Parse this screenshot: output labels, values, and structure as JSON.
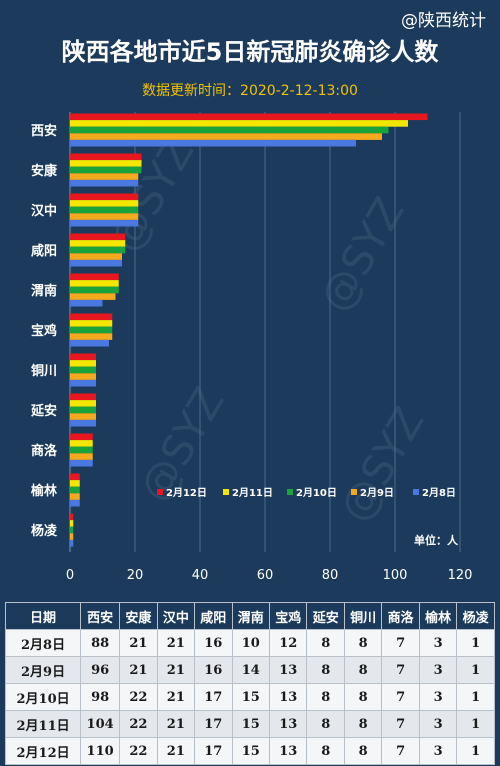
{
  "header": {
    "watermark": "@陕西统计",
    "title": "陕西各地市近5日新冠肺炎确诊人数",
    "subtitle": "数据更新时间：2020-2-12-13:00"
  },
  "chart_data": {
    "type": "bar",
    "orientation": "horizontal",
    "categories": [
      "西安",
      "安康",
      "汉中",
      "咸阳",
      "渭南",
      "宝鸡",
      "铜川",
      "延安",
      "商洛",
      "榆林",
      "杨凌"
    ],
    "series": [
      {
        "name": "2月12日",
        "color": "#e8161d",
        "values": [
          110,
          22,
          21,
          17,
          15,
          13,
          8,
          8,
          7,
          3,
          1
        ]
      },
      {
        "name": "2月11日",
        "color": "#f3e600",
        "values": [
          104,
          22,
          21,
          17,
          15,
          13,
          8,
          8,
          7,
          3,
          1
        ]
      },
      {
        "name": "2月10日",
        "color": "#1aa33a",
        "values": [
          98,
          22,
          21,
          17,
          15,
          13,
          8,
          8,
          7,
          3,
          1
        ]
      },
      {
        "name": "2月9日",
        "color": "#f5a91c",
        "values": [
          96,
          21,
          21,
          16,
          14,
          13,
          8,
          8,
          7,
          3,
          1
        ]
      },
      {
        "name": "2月8日",
        "color": "#4a78e0",
        "values": [
          88,
          21,
          21,
          16,
          10,
          12,
          8,
          8,
          7,
          3,
          1
        ]
      }
    ],
    "x_ticks": [
      0,
      20,
      40,
      60,
      80,
      100,
      120
    ],
    "xlim": [
      0,
      120
    ],
    "unit_label": "单位：人",
    "legend_position": "lower-right",
    "grid": true
  },
  "table": {
    "headers": [
      "日期",
      "西安",
      "安康",
      "汉中",
      "咸阳",
      "渭南",
      "宝鸡",
      "延安",
      "铜川",
      "商洛",
      "榆林",
      "杨凌"
    ],
    "rows": [
      [
        "2月8日",
        "88",
        "21",
        "21",
        "16",
        "10",
        "12",
        "8",
        "8",
        "7",
        "3",
        "1"
      ],
      [
        "2月9日",
        "96",
        "21",
        "21",
        "16",
        "14",
        "13",
        "8",
        "8",
        "7",
        "3",
        "1"
      ],
      [
        "2月10日",
        "98",
        "22",
        "21",
        "17",
        "15",
        "13",
        "8",
        "8",
        "7",
        "3",
        "1"
      ],
      [
        "2月11日",
        "104",
        "22",
        "21",
        "17",
        "15",
        "13",
        "8",
        "8",
        "7",
        "3",
        "1"
      ],
      [
        "2月12日",
        "110",
        "22",
        "21",
        "17",
        "15",
        "13",
        "8",
        "8",
        "7",
        "3",
        "1"
      ]
    ]
  },
  "colors": {
    "background": "#1b3a5c",
    "subtitle": "#f2c100"
  }
}
